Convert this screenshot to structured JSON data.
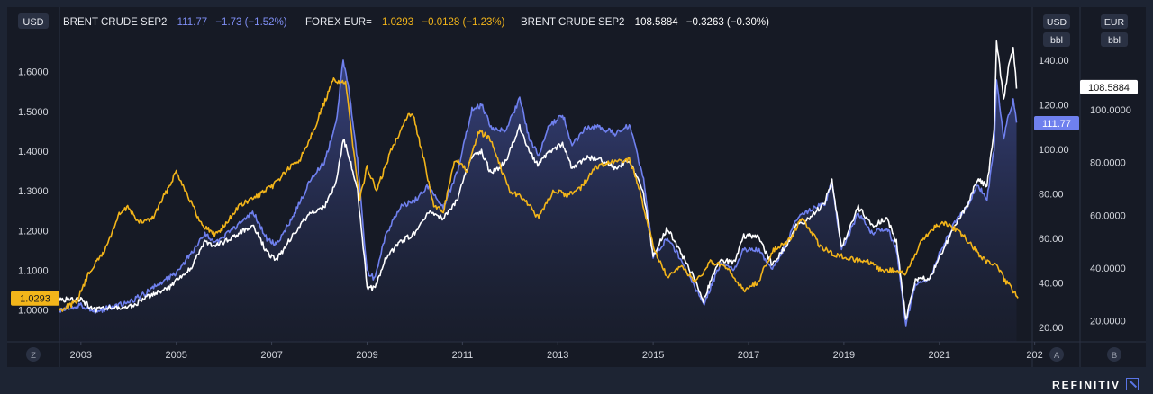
{
  "header": {
    "currency_badge": "USD",
    "series": [
      {
        "name": "BRENT CRUDE SEP2",
        "last": "111.77",
        "change": "−1.73 (−1.52%)"
      },
      {
        "name": "FOREX EUR=",
        "last": "1.0293",
        "change": "−0.0128 (−1.23%)"
      },
      {
        "name": "BRENT CRUDE SEP2",
        "last": "108.5884",
        "change": "−0.3263 (−0.30%)"
      }
    ]
  },
  "axes": {
    "right_a_unit": "USD",
    "right_a_sub": "bbl",
    "right_b_unit": "EUR",
    "right_b_sub": "bbl",
    "corner_left": "Z",
    "corner_a": "A",
    "corner_b": "B"
  },
  "tags": {
    "left_value": "1.0293",
    "usd_value": "111.77",
    "eur_value": "108.5884"
  },
  "brand": "REFINITIV",
  "colors": {
    "brent_usd": "#6f80ee",
    "forex_eur": "#f3b51a",
    "brent_eur": "#ffffff",
    "background": "#161a25"
  },
  "chart_data": {
    "type": "line",
    "x_ticks": [
      "2003",
      "2005",
      "2007",
      "2009",
      "2011",
      "2013",
      "2015",
      "2017",
      "2019",
      "2021",
      "202"
    ],
    "left_axis": {
      "ticks": [
        "1.6000",
        "1.5000",
        "1.4000",
        "1.3000",
        "1.2000",
        "1.1000",
        "1.0000"
      ],
      "range": [
        0.92,
        1.69
      ]
    },
    "right_axis_usd": {
      "ticks": [
        "140.00",
        "120.00",
        "100.00",
        "80.00",
        "60.00",
        "40.00",
        "20.00"
      ],
      "range": [
        13.5,
        151
      ]
    },
    "right_axis_eur": {
      "ticks": [
        "100.0000",
        "80.0000",
        "60.0000",
        "40.0000",
        "20.0000"
      ],
      "range": [
        12,
        128
      ]
    },
    "series": [
      {
        "name": "FOREX EUR=",
        "axis": "left",
        "points": [
          [
            2002.55,
            1.0
          ],
          [
            2002.9,
            1.02
          ],
          [
            2003.2,
            1.1
          ],
          [
            2003.5,
            1.15
          ],
          [
            2003.8,
            1.24
          ],
          [
            2004.0,
            1.26
          ],
          [
            2004.2,
            1.22
          ],
          [
            2004.5,
            1.23
          ],
          [
            2004.8,
            1.3
          ],
          [
            2005.0,
            1.35
          ],
          [
            2005.2,
            1.3
          ],
          [
            2005.5,
            1.22
          ],
          [
            2005.8,
            1.19
          ],
          [
            2006.0,
            1.21
          ],
          [
            2006.3,
            1.26
          ],
          [
            2006.6,
            1.28
          ],
          [
            2007.0,
            1.31
          ],
          [
            2007.3,
            1.35
          ],
          [
            2007.6,
            1.38
          ],
          [
            2007.9,
            1.46
          ],
          [
            2008.1,
            1.52
          ],
          [
            2008.3,
            1.58
          ],
          [
            2008.55,
            1.57
          ],
          [
            2008.7,
            1.42
          ],
          [
            2008.85,
            1.28
          ],
          [
            2009.0,
            1.36
          ],
          [
            2009.2,
            1.3
          ],
          [
            2009.5,
            1.4
          ],
          [
            2009.8,
            1.48
          ],
          [
            2009.95,
            1.5
          ],
          [
            2010.15,
            1.4
          ],
          [
            2010.4,
            1.26
          ],
          [
            2010.6,
            1.25
          ],
          [
            2010.85,
            1.38
          ],
          [
            2011.1,
            1.35
          ],
          [
            2011.35,
            1.45
          ],
          [
            2011.6,
            1.43
          ],
          [
            2011.8,
            1.36
          ],
          [
            2012.0,
            1.3
          ],
          [
            2012.3,
            1.28
          ],
          [
            2012.6,
            1.23
          ],
          [
            2012.9,
            1.3
          ],
          [
            2013.2,
            1.29
          ],
          [
            2013.5,
            1.31
          ],
          [
            2013.8,
            1.36
          ],
          [
            2014.1,
            1.37
          ],
          [
            2014.5,
            1.38
          ],
          [
            2014.7,
            1.31
          ],
          [
            2015.0,
            1.16
          ],
          [
            2015.3,
            1.08
          ],
          [
            2015.6,
            1.11
          ],
          [
            2015.9,
            1.07
          ],
          [
            2016.2,
            1.12
          ],
          [
            2016.5,
            1.11
          ],
          [
            2016.9,
            1.05
          ],
          [
            2017.2,
            1.07
          ],
          [
            2017.5,
            1.15
          ],
          [
            2017.9,
            1.18
          ],
          [
            2018.1,
            1.23
          ],
          [
            2018.3,
            1.2
          ],
          [
            2018.5,
            1.16
          ],
          [
            2018.8,
            1.14
          ],
          [
            2019.1,
            1.13
          ],
          [
            2019.5,
            1.12
          ],
          [
            2019.8,
            1.1
          ],
          [
            2020.1,
            1.1
          ],
          [
            2020.3,
            1.09
          ],
          [
            2020.6,
            1.17
          ],
          [
            2020.9,
            1.21
          ],
          [
            2021.1,
            1.22
          ],
          [
            2021.4,
            1.2
          ],
          [
            2021.7,
            1.16
          ],
          [
            2021.9,
            1.13
          ],
          [
            2022.2,
            1.11
          ],
          [
            2022.4,
            1.07
          ],
          [
            2022.55,
            1.05
          ],
          [
            2022.65,
            1.03
          ]
        ]
      },
      {
        "name": "BRENT CRUDE SEP2",
        "axis": "right_usd",
        "points": [
          [
            2002.55,
            28
          ],
          [
            2003.0,
            30
          ],
          [
            2003.3,
            27
          ],
          [
            2003.6,
            29
          ],
          [
            2004.0,
            31
          ],
          [
            2004.4,
            36
          ],
          [
            2004.8,
            42
          ],
          [
            2005.0,
            44
          ],
          [
            2005.3,
            53
          ],
          [
            2005.6,
            62
          ],
          [
            2005.8,
            58
          ],
          [
            2006.2,
            64
          ],
          [
            2006.6,
            72
          ],
          [
            2006.9,
            60
          ],
          [
            2007.1,
            57
          ],
          [
            2007.5,
            72
          ],
          [
            2007.8,
            86
          ],
          [
            2008.1,
            94
          ],
          [
            2008.35,
            112
          ],
          [
            2008.5,
            140
          ],
          [
            2008.6,
            130
          ],
          [
            2008.8,
            95
          ],
          [
            2009.0,
            45
          ],
          [
            2009.15,
            42
          ],
          [
            2009.4,
            62
          ],
          [
            2009.7,
            74
          ],
          [
            2010.0,
            77
          ],
          [
            2010.3,
            84
          ],
          [
            2010.6,
            74
          ],
          [
            2010.9,
            90
          ],
          [
            2011.0,
            100
          ],
          [
            2011.2,
            118
          ],
          [
            2011.4,
            120
          ],
          [
            2011.6,
            110
          ],
          [
            2011.9,
            108
          ],
          [
            2012.2,
            123
          ],
          [
            2012.4,
            105
          ],
          [
            2012.6,
            97
          ],
          [
            2012.8,
            110
          ],
          [
            2013.1,
            116
          ],
          [
            2013.3,
            102
          ],
          [
            2013.6,
            110
          ],
          [
            2013.9,
            110
          ],
          [
            2014.2,
            107
          ],
          [
            2014.5,
            111
          ],
          [
            2014.8,
            87
          ],
          [
            2015.0,
            52
          ],
          [
            2015.3,
            60
          ],
          [
            2015.6,
            50
          ],
          [
            2015.9,
            37
          ],
          [
            2016.05,
            30
          ],
          [
            2016.4,
            48
          ],
          [
            2016.7,
            46
          ],
          [
            2016.9,
            55
          ],
          [
            2017.2,
            55
          ],
          [
            2017.5,
            46
          ],
          [
            2017.8,
            58
          ],
          [
            2018.0,
            69
          ],
          [
            2018.3,
            73
          ],
          [
            2018.6,
            76
          ],
          [
            2018.75,
            85
          ],
          [
            2018.95,
            55
          ],
          [
            2019.3,
            71
          ],
          [
            2019.6,
            62
          ],
          [
            2019.9,
            65
          ],
          [
            2020.1,
            55
          ],
          [
            2020.3,
            21
          ],
          [
            2020.5,
            40
          ],
          [
            2020.8,
            42
          ],
          [
            2021.0,
            53
          ],
          [
            2021.3,
            66
          ],
          [
            2021.6,
            75
          ],
          [
            2021.8,
            84
          ],
          [
            2022.0,
            78
          ],
          [
            2022.15,
            100
          ],
          [
            2022.2,
            132
          ],
          [
            2022.35,
            105
          ],
          [
            2022.45,
            115
          ],
          [
            2022.55,
            122
          ],
          [
            2022.62,
            112
          ]
        ]
      },
      {
        "name": "BRENT CRUDE SEP2",
        "axis": "right_eur",
        "points": [
          [
            2002.55,
            28
          ],
          [
            2003.0,
            28
          ],
          [
            2003.3,
            24
          ],
          [
            2003.6,
            25
          ],
          [
            2004.0,
            25
          ],
          [
            2004.4,
            29
          ],
          [
            2004.8,
            32
          ],
          [
            2005.0,
            35
          ],
          [
            2005.3,
            40
          ],
          [
            2005.6,
            50
          ],
          [
            2005.8,
            48
          ],
          [
            2006.2,
            52
          ],
          [
            2006.6,
            56
          ],
          [
            2006.9,
            46
          ],
          [
            2007.1,
            43
          ],
          [
            2007.5,
            54
          ],
          [
            2007.8,
            61
          ],
          [
            2008.1,
            63
          ],
          [
            2008.35,
            72
          ],
          [
            2008.5,
            89
          ],
          [
            2008.6,
            84
          ],
          [
            2008.8,
            70
          ],
          [
            2009.0,
            33
          ],
          [
            2009.15,
            32
          ],
          [
            2009.4,
            44
          ],
          [
            2009.7,
            50
          ],
          [
            2010.0,
            53
          ],
          [
            2010.3,
            61
          ],
          [
            2010.6,
            59
          ],
          [
            2010.9,
            66
          ],
          [
            2011.0,
            73
          ],
          [
            2011.2,
            82
          ],
          [
            2011.4,
            84
          ],
          [
            2011.6,
            76
          ],
          [
            2011.9,
            80
          ],
          [
            2012.2,
            94
          ],
          [
            2012.4,
            84
          ],
          [
            2012.6,
            79
          ],
          [
            2012.8,
            84
          ],
          [
            2013.1,
            87
          ],
          [
            2013.3,
            78
          ],
          [
            2013.6,
            82
          ],
          [
            2013.9,
            81
          ],
          [
            2014.2,
            78
          ],
          [
            2014.5,
            81
          ],
          [
            2014.8,
            68
          ],
          [
            2015.0,
            45
          ],
          [
            2015.3,
            55
          ],
          [
            2015.6,
            45
          ],
          [
            2015.9,
            35
          ],
          [
            2016.05,
            28
          ],
          [
            2016.4,
            43
          ],
          [
            2016.7,
            42
          ],
          [
            2016.9,
            52
          ],
          [
            2017.2,
            52
          ],
          [
            2017.5,
            41
          ],
          [
            2017.8,
            49
          ],
          [
            2018.0,
            56
          ],
          [
            2018.3,
            59
          ],
          [
            2018.6,
            65
          ],
          [
            2018.75,
            73
          ],
          [
            2018.95,
            48
          ],
          [
            2019.3,
            63
          ],
          [
            2019.6,
            56
          ],
          [
            2019.9,
            59
          ],
          [
            2020.1,
            50
          ],
          [
            2020.3,
            20
          ],
          [
            2020.5,
            36
          ],
          [
            2020.8,
            36
          ],
          [
            2021.0,
            44
          ],
          [
            2021.3,
            55
          ],
          [
            2021.6,
            64
          ],
          [
            2021.8,
            74
          ],
          [
            2022.0,
            71
          ],
          [
            2022.15,
            92
          ],
          [
            2022.2,
            126
          ],
          [
            2022.35,
            104
          ],
          [
            2022.45,
            116
          ],
          [
            2022.55,
            124
          ],
          [
            2022.62,
            108
          ]
        ]
      }
    ]
  }
}
